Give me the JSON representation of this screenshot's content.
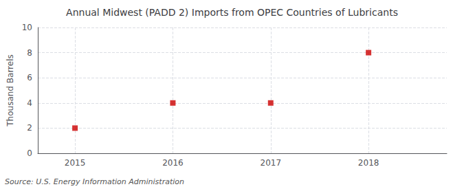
{
  "chart_data": {
    "type": "scatter",
    "title": "Annual Midwest (PADD 2) Imports from OPEC Countries of Lubricants",
    "ylabel": "Thousand Barrels",
    "annotation": "Source: U.S. Energy Information Administration",
    "x": [
      2015,
      2016,
      2017,
      2018
    ],
    "values": [
      2,
      4,
      4,
      8
    ],
    "color": "#cc0000",
    "marker": "square",
    "xlim": [
      2014.62,
      2018.8
    ],
    "xticks": [
      2015,
      2016,
      2017,
      2018
    ],
    "ylim": [
      0,
      10
    ],
    "yticks": [
      0,
      2,
      4,
      6,
      8,
      10
    ],
    "grid": true
  }
}
